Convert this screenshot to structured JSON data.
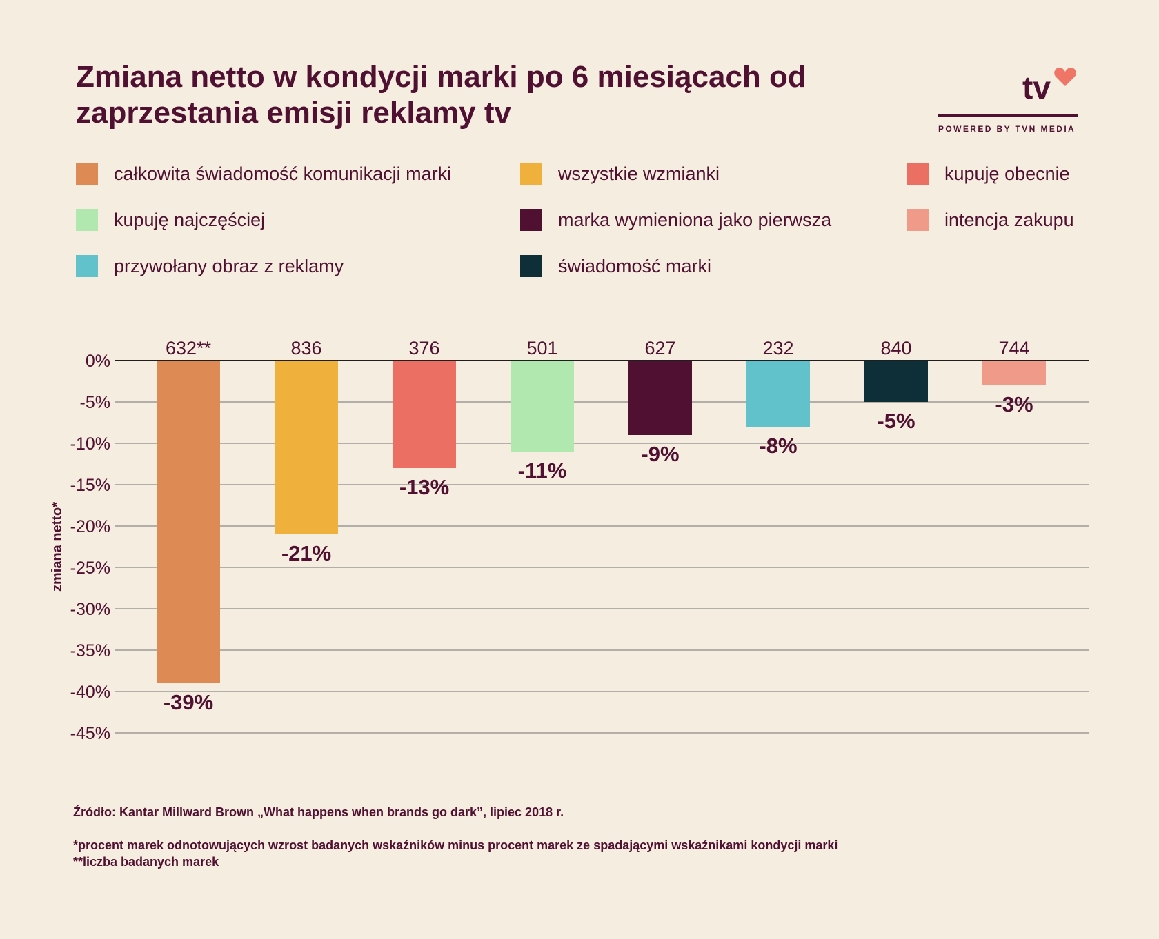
{
  "header": {
    "title": "Zmiana netto w kondycji marki po 6 miesiącach od zaprzestania emisji reklamy tv"
  },
  "logo": {
    "mark": "tv",
    "tagline": "POWERED BY TVN MEDIA",
    "heart_color": "#ef7566"
  },
  "colors": {
    "background": "#f5ede0",
    "text": "#4f1031",
    "gridline": "#b3aea7",
    "baseline": "#1e1e1e"
  },
  "legend": {
    "items": [
      {
        "label": "całkowita świadomość komunikacji marki",
        "color": "#de8a55"
      },
      {
        "label": "wszystkie wzmianki",
        "color": "#efb13b"
      },
      {
        "label": "kupuję obecnie",
        "color": "#ec6f63"
      },
      {
        "label": "kupuję najczęściej",
        "color": "#b0e8b0"
      },
      {
        "label": "marka wymieniona jako pierwsza",
        "color": "#4f1031"
      },
      {
        "label": "intencja zakupu",
        "color": "#f09a8a"
      },
      {
        "label": "przywołany obraz z reklamy",
        "color": "#62c2cc"
      },
      {
        "label": "świadomość marki",
        "color": "#0f2f38"
      }
    ]
  },
  "chart_data": {
    "type": "bar",
    "title": "Zmiana netto w kondycji marki po 6 miesiącach od zaprzestania emisji reklamy tv",
    "xlabel": "",
    "ylabel": "zmiana netto*",
    "ylim": [
      -45,
      0
    ],
    "y_ticks": [
      0,
      -5,
      -10,
      -15,
      -20,
      -25,
      -30,
      -35,
      -40,
      -45
    ],
    "y_tick_labels": [
      "0%",
      "-5%",
      "-10%",
      "-15%",
      "-20%",
      "-25%",
      "-30%",
      "-35%",
      "-40%",
      "-45%"
    ],
    "grid": true,
    "categories": [
      "całkowita świadomość komunikacji marki",
      "wszystkie wzmianki",
      "kupuję obecnie",
      "kupuję najczęściej",
      "marka wymieniona jako pierwsza",
      "przywołany obraz z reklamy",
      "świadomość marki",
      "intencja zakupu"
    ],
    "values": [
      -39,
      -21,
      -13,
      -11,
      -9,
      -8,
      -5,
      -3
    ],
    "value_labels": [
      "-39%",
      "-21%",
      "-13%",
      "-11%",
      "-9%",
      "-8%",
      "-5%",
      "-3%"
    ],
    "brand_counts": [
      "632**",
      "836",
      "376",
      "501",
      "627",
      "232",
      "840",
      "744"
    ],
    "colors": [
      "#de8a55",
      "#efb13b",
      "#ec6f63",
      "#b0e8b0",
      "#4f1031",
      "#62c2cc",
      "#0f2f38",
      "#f09a8a"
    ]
  },
  "footer": {
    "source": "Źródło: Kantar Millward Brown „What happens when brands go dark”, lipiec 2018 r.",
    "note1": "*procent marek odnotowujących wzrost badanych wskaźników minus procent marek ze spadającymi wskaźnikami kondycji marki",
    "note2": "**liczba badanych marek"
  }
}
